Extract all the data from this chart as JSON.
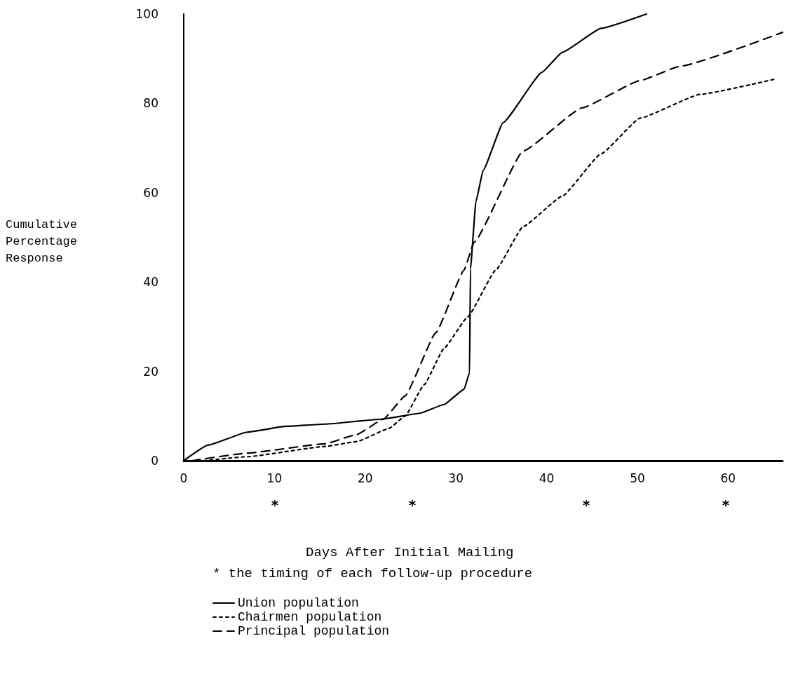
{
  "chart_data": {
    "type": "line",
    "xlabel": "Days After Initial Mailing",
    "ylabel": "Cumulative\nPercentage\nResponse",
    "xlim": [
      0,
      66
    ],
    "xticks": [
      0,
      10,
      20,
      30,
      40,
      50,
      60
    ],
    "ylim": [
      0,
      100
    ],
    "yticks": [
      0,
      20,
      40,
      60,
      80,
      100
    ],
    "grid": false,
    "marker": "none",
    "legend": "bottom",
    "annotations": [
      "* the timing of each follow-up procedure",
      "*",
      "*",
      "*",
      "*"
    ],
    "series": [
      {
        "name": "Union population",
        "color": "#000000",
        "line_style": "solid",
        "x": [
          0,
          2.7,
          7,
          11.3,
          15.6,
          21.8,
          26,
          28.7,
          30.9,
          31.5,
          31.6,
          32.2,
          33,
          35.2,
          39.5,
          41.7,
          46,
          51
        ],
        "values": [
          0,
          3.5,
          6.4,
          7.7,
          8.2,
          9.3,
          10.6,
          12.6,
          16,
          19.7,
          43,
          58,
          65,
          75.7,
          87,
          91.4,
          96.8,
          100
        ]
      },
      {
        "name": "Chairmen population",
        "color": "#000000",
        "line_style": "dotted",
        "x": [
          2.2,
          7,
          15.6,
          19.1,
          22.6,
          24.4,
          26.5,
          28.7,
          31.3,
          34.4,
          37.4,
          41.7,
          46,
          50.3,
          56.9,
          65.1
        ],
        "values": [
          0,
          0.9,
          3.2,
          4.3,
          7.2,
          10,
          17,
          25.2,
          32.2,
          42.7,
          52.4,
          59.2,
          68.7,
          76.7,
          82,
          85.4
        ]
      },
      {
        "name": "Principal population",
        "color": "#000000",
        "line_style": "dashed",
        "x": [
          0.9,
          7,
          15.6,
          19.1,
          22,
          24.4,
          27.8,
          30.9,
          32,
          37.4,
          43.9,
          50.3,
          54.7,
          66
        ],
        "values": [
          0,
          1.7,
          3.8,
          5.9,
          9.3,
          14.5,
          28.7,
          42.7,
          48.9,
          69.3,
          79,
          85.1,
          88.3,
          95.9
        ]
      }
    ]
  }
}
